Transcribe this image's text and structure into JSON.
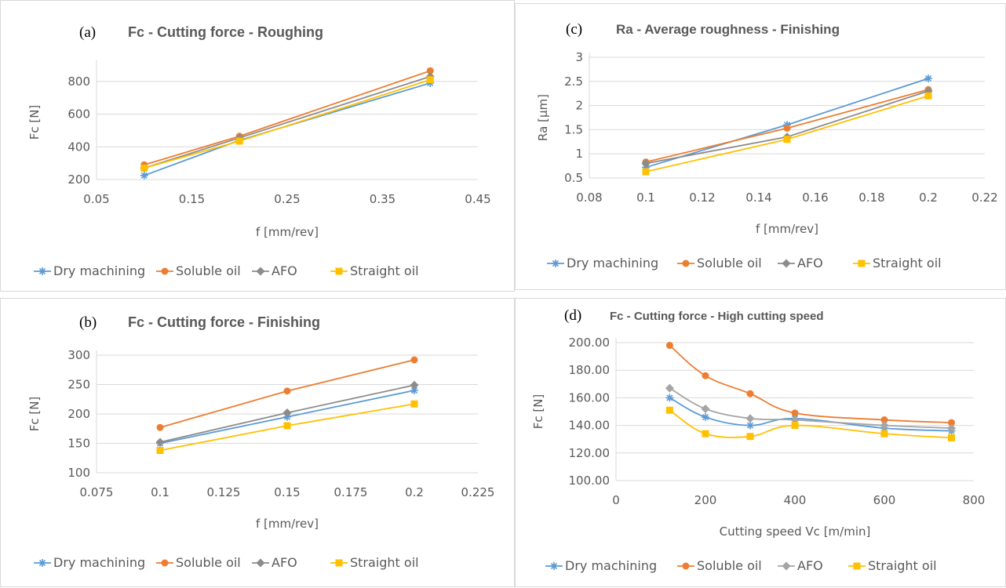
{
  "chart_data": [
    {
      "id": "a",
      "type": "line",
      "panel_letter": "(a)",
      "title": "Fc - Cutting force - Roughing",
      "xlabel": "f [mm/rev]",
      "ylabel": "Fc [N]",
      "xlim": [
        0.05,
        0.45
      ],
      "ylim": [
        200,
        900
      ],
      "xticks": [
        0.05,
        0.15,
        0.25,
        0.35,
        0.45
      ],
      "xtick_labels": [
        "0.05",
        "0.15",
        "0.25",
        "0.35",
        "0.45"
      ],
      "yticks": [
        200,
        400,
        600,
        800
      ],
      "ytick_labels": [
        "200",
        "400",
        "600",
        "800"
      ],
      "grid": "horizontal",
      "legend_position": "bottom",
      "smooth": false,
      "x": [
        0.1,
        0.2,
        0.4
      ],
      "series": [
        {
          "name": "Dry machining",
          "marker": "asterisk",
          "color": "#5b9bd5",
          "values": [
            225,
            440,
            790
          ]
        },
        {
          "name": "Soluble oil",
          "marker": "circle",
          "color": "#ed7d31",
          "values": [
            290,
            465,
            865
          ]
        },
        {
          "name": "AFO",
          "marker": "diamond",
          "color": "#8c8c8c",
          "values": [
            270,
            455,
            830
          ]
        },
        {
          "name": "Straight oil",
          "marker": "square",
          "color": "#ffc000",
          "values": [
            270,
            435,
            810
          ]
        }
      ]
    },
    {
      "id": "b",
      "type": "line",
      "panel_letter": "(b)",
      "title": "Fc - Cutting force - Finishing",
      "xlabel": "f [mm/rev]",
      "ylabel": "Fc [N]",
      "xlim": [
        0.075,
        0.225
      ],
      "ylim": [
        100,
        300
      ],
      "xticks": [
        0.075,
        0.1,
        0.125,
        0.15,
        0.175,
        0.2,
        0.225
      ],
      "xtick_labels": [
        "0.075",
        "0.1",
        "0.125",
        "0.15",
        "0.175",
        "0.2",
        "0.225"
      ],
      "yticks": [
        100,
        150,
        200,
        250,
        300
      ],
      "ytick_labels": [
        "100",
        "150",
        "200",
        "250",
        "300"
      ],
      "grid": "horizontal",
      "legend_position": "bottom",
      "smooth": false,
      "x": [
        0.1,
        0.15,
        0.2
      ],
      "series": [
        {
          "name": "Dry machining",
          "marker": "asterisk",
          "color": "#5b9bd5",
          "values": [
            150,
            195,
            240
          ]
        },
        {
          "name": "Soluble oil",
          "marker": "circle",
          "color": "#ed7d31",
          "values": [
            177,
            239,
            292
          ]
        },
        {
          "name": "AFO",
          "marker": "diamond",
          "color": "#8c8c8c",
          "values": [
            152,
            202,
            249
          ]
        },
        {
          "name": "Straight oil",
          "marker": "square",
          "color": "#ffc000",
          "values": [
            138,
            180,
            217
          ]
        }
      ]
    },
    {
      "id": "c",
      "type": "line",
      "panel_letter": "(c)",
      "title": "Ra - Average roughness - Finishing",
      "xlabel": "f [mm/rev]",
      "ylabel": "Ra [µm]",
      "xlim": [
        0.08,
        0.22
      ],
      "ylim": [
        0.5,
        3
      ],
      "xticks": [
        0.08,
        0.1,
        0.12,
        0.14,
        0.16,
        0.18,
        0.2,
        0.22
      ],
      "xtick_labels": [
        "0.08",
        "0.1",
        "0.12",
        "0.14",
        "0.16",
        "0.18",
        "0.2",
        "0.22"
      ],
      "yticks": [
        0.5,
        1,
        1.5,
        2,
        2.5,
        3
      ],
      "ytick_labels": [
        "0.5",
        "1",
        "1.5",
        "2",
        "2.5",
        "3"
      ],
      "grid": "horizontal",
      "legend_position": "bottom",
      "smooth": false,
      "x": [
        0.1,
        0.15,
        0.2
      ],
      "series": [
        {
          "name": "Dry machining",
          "marker": "asterisk",
          "color": "#5b9bd5",
          "values": [
            0.72,
            1.6,
            2.56
          ]
        },
        {
          "name": "Soluble oil",
          "marker": "circle",
          "color": "#ed7d31",
          "values": [
            0.83,
            1.53,
            2.33
          ]
        },
        {
          "name": "AFO",
          "marker": "diamond",
          "color": "#8c8c8c",
          "values": [
            0.8,
            1.35,
            2.3
          ]
        },
        {
          "name": "Straight oil",
          "marker": "square",
          "color": "#ffc000",
          "values": [
            0.63,
            1.3,
            2.2
          ]
        }
      ]
    },
    {
      "id": "d",
      "type": "line",
      "panel_letter": "(d)",
      "title": "Fc - Cutting force - High cutting speed",
      "xlabel": "Cutting speed Vc [m/min]",
      "ylabel": "Fc [N]",
      "xlim": [
        0,
        800
      ],
      "ylim": [
        100,
        200
      ],
      "xticks": [
        0,
        200,
        400,
        600,
        800
      ],
      "xtick_labels": [
        "0",
        "200",
        "400",
        "600",
        "800"
      ],
      "yticks": [
        100,
        120,
        140,
        160,
        180,
        200
      ],
      "ytick_labels": [
        "100.00",
        "120.00",
        "140.00",
        "160.00",
        "180.00",
        "200.00"
      ],
      "grid": "horizontal",
      "legend_position": "bottom",
      "smooth": true,
      "x": [
        120,
        200,
        300,
        400,
        600,
        750
      ],
      "series": [
        {
          "name": "Dry machining",
          "marker": "asterisk",
          "color": "#5b9bd5",
          "values": [
            160,
            146,
            140,
            145,
            138,
            136
          ]
        },
        {
          "name": "Soluble oil",
          "marker": "circle",
          "color": "#ed7d31",
          "values": [
            198,
            176,
            163,
            149,
            144,
            142
          ]
        },
        {
          "name": "AFO",
          "marker": "diamond",
          "color": "#a5a5a5",
          "values": [
            167,
            152,
            145,
            144,
            140,
            138
          ]
        },
        {
          "name": "Straight oil",
          "marker": "square",
          "color": "#ffc000",
          "values": [
            151,
            134,
            132,
            140,
            134,
            131
          ]
        }
      ]
    }
  ]
}
